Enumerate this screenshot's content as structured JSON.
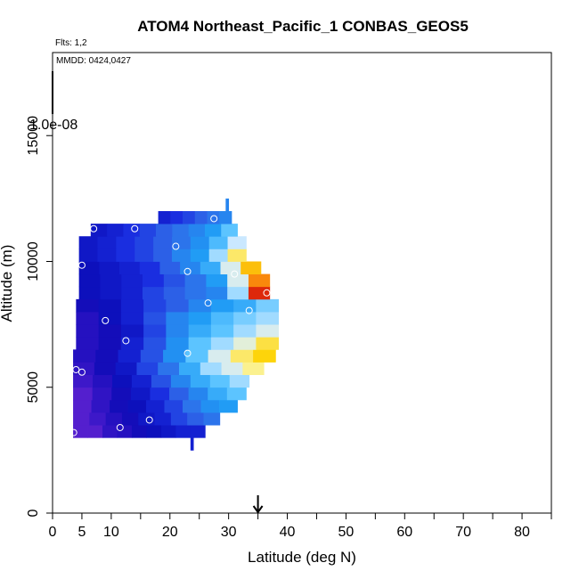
{
  "chart_data": {
    "type": "heatmap",
    "title": "ATOM4 Northeast_Pacific_1 CONBAS_GEOS5",
    "annotations": [
      "Flts: 1,2",
      "MMDD: 0424,0427"
    ],
    "colorbar_label": "1.0e-08",
    "xlabel": "Latitude (deg N)",
    "ylabel": "Altitude (m)",
    "xlim": [
      0,
      85
    ],
    "ylim": [
      0,
      18300
    ],
    "x_ticks": [
      0,
      5,
      10,
      20,
      30,
      40,
      50,
      60,
      70,
      80
    ],
    "x_minor_ticks": [
      15,
      25,
      35,
      45,
      55,
      65,
      75,
      85
    ],
    "y_ticks": [
      0,
      5000,
      10000,
      15000
    ],
    "colorscale": [
      "#7a2bd8",
      "#3a17c8",
      "#0a0ab5",
      "#1a2ee0",
      "#2f6ae8",
      "#1f9af5",
      "#5cc4ff",
      "#cfeaff",
      "#fbf6a8",
      "#fdd40a",
      "#fb9a0c",
      "#f0420a",
      "#c0000a"
    ],
    "rows": [
      {
        "y0": 3000,
        "y1": 3500,
        "x0": 3.5,
        "x1": 26,
        "v": [
          0.05,
          0.05,
          0.1,
          0.12,
          0.15,
          0.18,
          0.2,
          0.22,
          0.22
        ]
      },
      {
        "y0": 3500,
        "y1": 4000,
        "x0": 3.5,
        "x1": 28.5,
        "v": [
          0.05,
          0.08,
          0.12,
          0.15,
          0.2,
          0.22,
          0.28,
          0.32,
          0.35
        ]
      },
      {
        "y0": 4000,
        "y1": 4500,
        "x0": 3.5,
        "x1": 31.5,
        "v": [
          0.05,
          0.1,
          0.15,
          0.18,
          0.22,
          0.28,
          0.35,
          0.4,
          0.42
        ]
      },
      {
        "y0": 4500,
        "y1": 5000,
        "x0": 3.5,
        "x1": 33,
        "v": [
          0.05,
          0.1,
          0.15,
          0.2,
          0.25,
          0.32,
          0.38,
          0.45,
          0.5
        ]
      },
      {
        "y0": 5000,
        "y1": 5500,
        "x0": 3.5,
        "x1": 33.5,
        "v": [
          0.08,
          0.12,
          0.18,
          0.22,
          0.3,
          0.38,
          0.45,
          0.5,
          0.55
        ]
      },
      {
        "y0": 5500,
        "y1": 6000,
        "x0": 3.5,
        "x1": 36,
        "v": [
          0.1,
          0.15,
          0.2,
          0.28,
          0.35,
          0.45,
          0.55,
          0.6,
          0.68
        ]
      },
      {
        "y0": 6000,
        "y1": 6500,
        "x0": 3.5,
        "x1": 38,
        "v": [
          0.12,
          0.15,
          0.22,
          0.3,
          0.4,
          0.5,
          0.6,
          0.7,
          0.75
        ]
      },
      {
        "y0": 6500,
        "y1": 7000,
        "x0": 4,
        "x1": 38.5,
        "v": [
          0.12,
          0.15,
          0.22,
          0.3,
          0.4,
          0.5,
          0.55,
          0.62,
          0.72
        ]
      },
      {
        "y0": 7000,
        "y1": 7500,
        "x0": 4,
        "x1": 38.5,
        "v": [
          0.12,
          0.15,
          0.2,
          0.28,
          0.38,
          0.45,
          0.5,
          0.55,
          0.6
        ]
      },
      {
        "y0": 7500,
        "y1": 8000,
        "x0": 4,
        "x1": 38.5,
        "v": [
          0.12,
          0.18,
          0.22,
          0.3,
          0.38,
          0.42,
          0.48,
          0.52,
          0.55
        ]
      },
      {
        "y0": 8000,
        "y1": 8500,
        "x0": 4,
        "x1": 38.5,
        "v": [
          0.15,
          0.18,
          0.22,
          0.28,
          0.32,
          0.38,
          0.42,
          0.45,
          0.52
        ]
      },
      {
        "y0": 8500,
        "y1": 9000,
        "x0": 4.5,
        "x1": 37,
        "v": [
          0.18,
          0.2,
          0.22,
          0.28,
          0.32,
          0.35,
          0.38,
          0.55,
          0.95
        ]
      },
      {
        "y0": 9000,
        "y1": 9500,
        "x0": 4.5,
        "x1": 37,
        "v": [
          0.18,
          0.2,
          0.22,
          0.25,
          0.3,
          0.35,
          0.42,
          0.6,
          0.85
        ]
      },
      {
        "y0": 9500,
        "y1": 10000,
        "x0": 4.5,
        "x1": 35.5,
        "v": [
          0.18,
          0.2,
          0.22,
          0.25,
          0.32,
          0.38,
          0.45,
          0.6,
          0.78
        ]
      },
      {
        "y0": 10000,
        "y1": 10500,
        "x0": 4.5,
        "x1": 33,
        "v": [
          0.2,
          0.22,
          0.25,
          0.28,
          0.32,
          0.38,
          0.42,
          0.55,
          0.7
        ]
      },
      {
        "y0": 10500,
        "y1": 11000,
        "x0": 4.5,
        "x1": 33,
        "v": [
          0.2,
          0.22,
          0.25,
          0.28,
          0.32,
          0.35,
          0.4,
          0.48,
          0.58
        ]
      },
      {
        "y0": 11000,
        "y1": 11500,
        "x0": 6.5,
        "x1": 31.5,
        "v": [
          0.2,
          0.22,
          0.25,
          0.28,
          0.32,
          0.35,
          0.38,
          0.42,
          0.5
        ]
      },
      {
        "y0": 11500,
        "y1": 12000,
        "x0": 18,
        "x1": 30.5,
        "v": [
          0.22,
          0.25,
          0.28,
          0.32,
          0.35,
          0.38
        ]
      },
      {
        "y0": 12000,
        "y1": 12500,
        "x0": 29.5,
        "x1": 30,
        "v": [
          0.38
        ]
      },
      {
        "y0": 2500,
        "y1": 3000,
        "x0": 23.5,
        "x1": 24,
        "v": [
          0.22
        ]
      }
    ],
    "points": [
      {
        "x": 3.6,
        "y": 3200
      },
      {
        "x": 11.5,
        "y": 3400
      },
      {
        "x": 16.5,
        "y": 3700
      },
      {
        "x": 5.0,
        "y": 5600
      },
      {
        "x": 4.0,
        "y": 5700
      },
      {
        "x": 23.0,
        "y": 6350
      },
      {
        "x": 38.5,
        "y": 5900
      },
      {
        "x": 12.5,
        "y": 6850
      },
      {
        "x": 9.0,
        "y": 7650
      },
      {
        "x": 33.5,
        "y": 8050
      },
      {
        "x": 26.5,
        "y": 8350
      },
      {
        "x": 36.5,
        "y": 8750
      },
      {
        "x": 23.0,
        "y": 9600
      },
      {
        "x": 31.0,
        "y": 9500
      },
      {
        "x": 5.0,
        "y": 9850
      },
      {
        "x": 21.0,
        "y": 10600
      },
      {
        "x": 7.0,
        "y": 11300
      },
      {
        "x": 14.0,
        "y": 11300
      },
      {
        "x": 27.5,
        "y": 11700
      }
    ],
    "marker_x": 35
  }
}
